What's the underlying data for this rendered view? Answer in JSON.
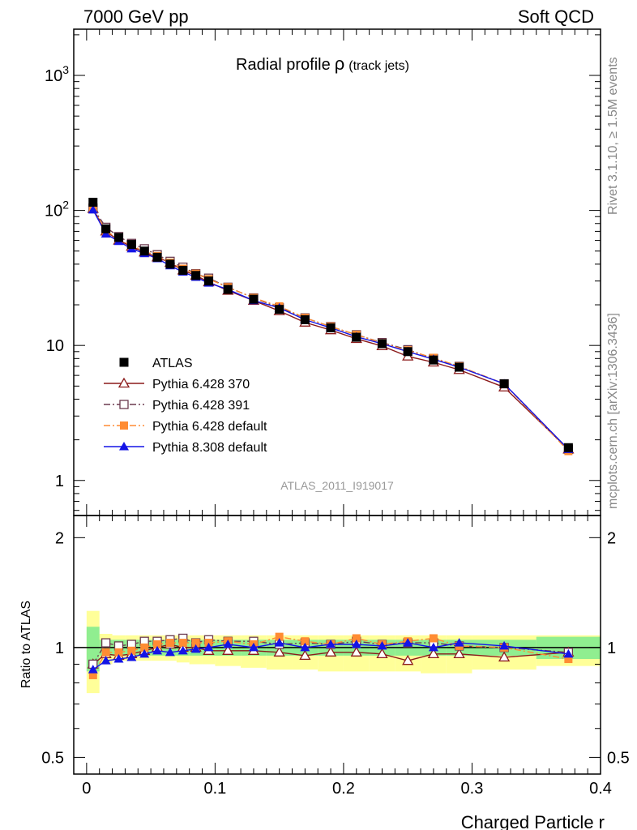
{
  "header": {
    "left": "7000 GeV pp",
    "right": "Soft QCD"
  },
  "side_labels": {
    "rivet": "Rivet 3.1.10, ≥ 1.5M events",
    "mcplots": "mcplots.cern.ch [arXiv:1306.3436]"
  },
  "chart_data": [
    {
      "type": "line",
      "panel": "main",
      "title": "Radial profile",
      "title_symbol": "ρ",
      "title_suffix": "(track jets)",
      "analysis": "ATLAS_2011_I919017",
      "yscale": "log",
      "ylim": [
        0.55,
        2200
      ],
      "xlim": [
        -0.01,
        0.4
      ],
      "yticks": [
        {
          "value": 1,
          "label": "1"
        },
        {
          "value": 10,
          "label": "10"
        },
        {
          "value": 100,
          "label": "10",
          "sup": "2"
        },
        {
          "value": 1000,
          "label": "10",
          "sup": "3"
        }
      ],
      "x": [
        0.005,
        0.015,
        0.025,
        0.035,
        0.045,
        0.055,
        0.065,
        0.075,
        0.085,
        0.095,
        0.11,
        0.13,
        0.15,
        0.17,
        0.19,
        0.21,
        0.23,
        0.25,
        0.27,
        0.29,
        0.325,
        0.375
      ],
      "series": [
        {
          "name": "ATLAS",
          "marker": "square-filled",
          "color": "#000000",
          "line": "none",
          "values": [
            115,
            73,
            63,
            56,
            50,
            45,
            40,
            36,
            33,
            30,
            26,
            22,
            18.5,
            15.5,
            13.5,
            11.5,
            10.3,
            9.0,
            7.8,
            6.9,
            5.2,
            1.75
          ]
        },
        {
          "name": "Pythia 6.428 370",
          "marker": "triangle-open",
          "color": "#8b1a1a",
          "line": "solid",
          "values": [
            103,
            70,
            60,
            54,
            49,
            45,
            41,
            36,
            33,
            29.5,
            25.5,
            21.5,
            18,
            14.8,
            13,
            11.2,
            9.9,
            8.3,
            7.5,
            6.6,
            4.9,
            1.7
          ]
        },
        {
          "name": "Pythia 6.428 391",
          "marker": "square-open",
          "color": "#6b3a4f",
          "line": "dashdot",
          "values": [
            104,
            75,
            64,
            57,
            52,
            47,
            42,
            38,
            34,
            31.5,
            27,
            22.5,
            19,
            16,
            13.8,
            12,
            10.5,
            9.3,
            8.0,
            7.0,
            5.2,
            1.7
          ]
        },
        {
          "name": "Pythia 6.428 default",
          "marker": "square-filled",
          "color": "#ff8c33",
          "line": "dashdot",
          "values": [
            102,
            71,
            61,
            55,
            50,
            46,
            41,
            37,
            34,
            31,
            27,
            22.5,
            19.5,
            16,
            13.8,
            12,
            10.4,
            9.2,
            8.1,
            7.0,
            5.2,
            1.65
          ]
        },
        {
          "name": "Pythia 8.308 default",
          "marker": "triangle-filled",
          "color": "#1414e6",
          "line": "solid",
          "values": [
            101,
            67,
            59,
            52,
            48,
            44,
            39,
            35,
            32,
            29,
            26,
            21.5,
            19,
            15.5,
            13.5,
            11.6,
            10.3,
            9.0,
            7.9,
            6.9,
            5.2,
            1.7
          ]
        }
      ]
    },
    {
      "type": "line",
      "panel": "ratio",
      "ylabel": "Ratio to ATLAS",
      "xlabel": "Charged Particle r",
      "ylim": [
        0.45,
        2.3
      ],
      "yscale": "log",
      "xlim": [
        -0.01,
        0.4
      ],
      "yticks": [
        {
          "value": 0.5,
          "label": "0.5"
        },
        {
          "value": 1,
          "label": "1"
        },
        {
          "value": 2,
          "label": "2"
        }
      ],
      "xticks": [
        {
          "value": 0,
          "label": "0"
        },
        {
          "value": 0.1,
          "label": "0.1"
        },
        {
          "value": 0.2,
          "label": "0.2"
        },
        {
          "value": 0.3,
          "label": "0.3"
        },
        {
          "value": 0.4,
          "label": "0.4"
        }
      ],
      "x": [
        0.005,
        0.015,
        0.025,
        0.035,
        0.045,
        0.055,
        0.065,
        0.075,
        0.085,
        0.095,
        0.11,
        0.13,
        0.15,
        0.17,
        0.19,
        0.21,
        0.23,
        0.25,
        0.27,
        0.29,
        0.325,
        0.375
      ],
      "bin_edges": [
        0,
        0.01,
        0.02,
        0.03,
        0.04,
        0.05,
        0.06,
        0.07,
        0.08,
        0.09,
        0.1,
        0.12,
        0.14,
        0.16,
        0.18,
        0.2,
        0.22,
        0.24,
        0.26,
        0.28,
        0.3,
        0.35,
        0.4
      ],
      "band_stat_lo": [
        0.86,
        0.95,
        0.95,
        0.95,
        0.95,
        0.95,
        0.95,
        0.95,
        0.95,
        0.95,
        0.95,
        0.95,
        0.95,
        0.95,
        0.95,
        0.95,
        0.95,
        0.95,
        0.95,
        0.95,
        0.95,
        0.93
      ],
      "band_stat_hi": [
        1.14,
        1.05,
        1.05,
        1.05,
        1.05,
        1.05,
        1.05,
        1.05,
        1.05,
        1.05,
        1.05,
        1.05,
        1.05,
        1.05,
        1.05,
        1.05,
        1.05,
        1.05,
        1.05,
        1.05,
        1.05,
        1.07
      ],
      "band_total_lo": [
        0.75,
        0.9,
        0.92,
        0.92,
        0.92,
        0.92,
        0.92,
        0.91,
        0.9,
        0.9,
        0.89,
        0.88,
        0.87,
        0.87,
        0.86,
        0.86,
        0.86,
        0.86,
        0.85,
        0.85,
        0.87,
        0.89
      ],
      "band_total_hi": [
        1.26,
        1.09,
        1.08,
        1.08,
        1.08,
        1.08,
        1.08,
        1.08,
        1.08,
        1.08,
        1.08,
        1.08,
        1.08,
        1.08,
        1.08,
        1.08,
        1.08,
        1.08,
        1.08,
        1.08,
        1.08,
        1.08
      ],
      "series": [
        {
          "name": "Pythia 6.428 370",
          "marker": "triangle-open",
          "color": "#8b1a1a",
          "line": "solid",
          "values": [
            0.9,
            0.96,
            0.95,
            0.96,
            0.98,
            1.0,
            1.02,
            1.0,
            1.0,
            0.98,
            0.98,
            0.98,
            0.97,
            0.95,
            0.97,
            0.97,
            0.96,
            0.92,
            0.96,
            0.96,
            0.94,
            0.97
          ]
        },
        {
          "name": "Pythia 6.428 391",
          "marker": "square-open",
          "color": "#6b3a4f",
          "line": "dashdot",
          "values": [
            0.9,
            1.03,
            1.01,
            1.02,
            1.04,
            1.04,
            1.05,
            1.06,
            1.03,
            1.05,
            1.04,
            1.04,
            1.02,
            1.03,
            1.02,
            1.04,
            1.02,
            1.03,
            1.03,
            1.01,
            1.0,
            0.97
          ]
        },
        {
          "name": "Pythia 6.428 default",
          "marker": "square-filled",
          "color": "#ff8c33",
          "line": "dashdot",
          "values": [
            0.84,
            0.97,
            0.97,
            0.98,
            1.0,
            1.02,
            1.03,
            1.03,
            1.03,
            1.03,
            1.04,
            1.02,
            1.07,
            1.04,
            1.02,
            1.06,
            1.02,
            1.04,
            1.06,
            1.01,
            1.0,
            0.93
          ]
        },
        {
          "name": "Pythia 8.308 default",
          "marker": "triangle-filled",
          "color": "#1414e6",
          "line": "solid",
          "values": [
            0.87,
            0.92,
            0.93,
            0.94,
            0.96,
            0.98,
            0.97,
            0.98,
            0.99,
            1.0,
            1.02,
            1.0,
            1.03,
            1.0,
            1.02,
            1.02,
            1.01,
            1.03,
            1.0,
            1.03,
            1.01,
            0.96
          ]
        }
      ]
    }
  ]
}
